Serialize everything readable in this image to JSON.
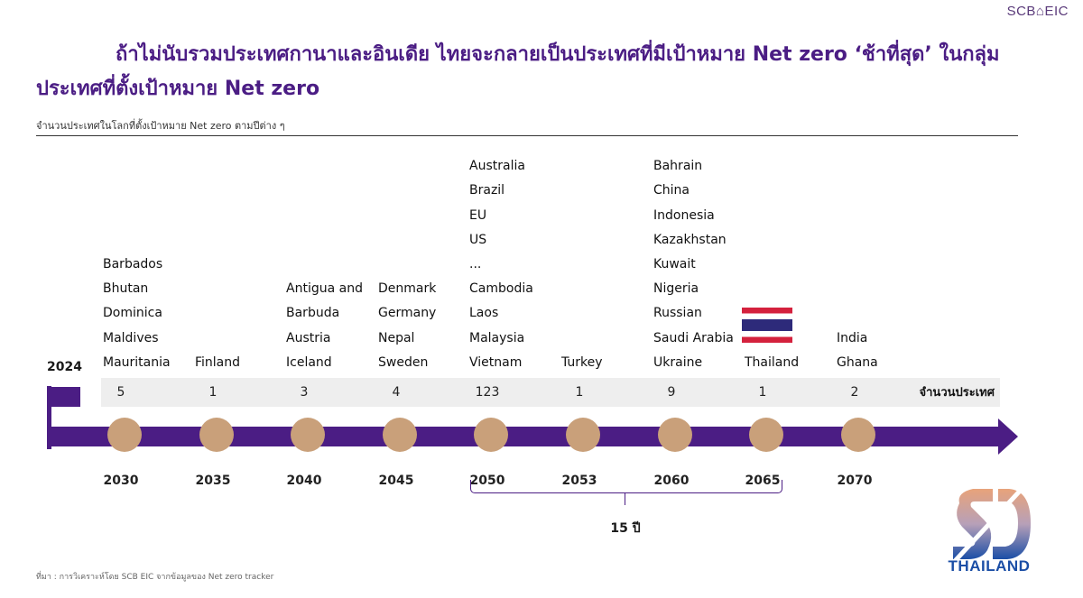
{
  "brand": "SCB⌂EIC",
  "title": "ถ้าไม่นับรวมประเทศกานาและอินเดีย ไทยจะกลายเป็นประเทศที่มีเป้าหมาย Net zero ‘ช้าที่สุด’ ในกลุ่มประเทศที่ตั้งเป้าหมาย Net zero",
  "source": "ที่มา : การวิเคราะห์โดย SCB EIC จากข้อมูลของ Net zero tracker",
  "logo_text": "THAILAND",
  "chart_data": {
    "type": "timeline",
    "title": "จำนวนประเทศในโลกที่ตั้งเป้าหมาย Net zero ตามปีต่าง ๆ",
    "start_year": "2024",
    "count_caption": "จำนวนประเทศ",
    "milestones": [
      {
        "year": "2030",
        "count": "5",
        "countries": [
          "Barbados",
          "Bhutan",
          "Dominica",
          "Maldives",
          "Mauritania"
        ]
      },
      {
        "year": "2035",
        "count": "1",
        "countries": [
          "Finland"
        ]
      },
      {
        "year": "2040",
        "count": "3",
        "countries": [
          "Antigua and",
          "Barbuda",
          "Austria",
          "Iceland"
        ]
      },
      {
        "year": "2045",
        "count": "4",
        "countries": [
          "Denmark",
          "Germany",
          "Nepal",
          "Sweden"
        ]
      },
      {
        "year": "2050",
        "count": "123",
        "countries": [
          "Australia",
          "Brazil",
          "EU",
          "US",
          "...",
          "Cambodia",
          "Laos",
          "Malaysia",
          "Vietnam"
        ]
      },
      {
        "year": "2053",
        "count": "1",
        "countries": [
          "Turkey"
        ]
      },
      {
        "year": "2060",
        "count": "9",
        "countries": [
          "Bahrain",
          "China",
          "Indonesia",
          "Kazakhstan",
          "Kuwait",
          "Nigeria",
          "Russian",
          "Saudi Arabia",
          "Ukraine"
        ]
      },
      {
        "year": "2065",
        "count": "1",
        "countries": [
          "Thailand"
        ],
        "highlight_flag": "thailand-flag"
      },
      {
        "year": "2070",
        "count": "2",
        "countries": [
          "India",
          "Ghana"
        ]
      }
    ],
    "span_annotation": {
      "from": "2050",
      "to": "2065",
      "label": "15 ปี"
    },
    "colors": {
      "timeline": "#4b1d84",
      "milestone_dot": "#c9a07a",
      "count_band": "#eeeeee"
    }
  }
}
